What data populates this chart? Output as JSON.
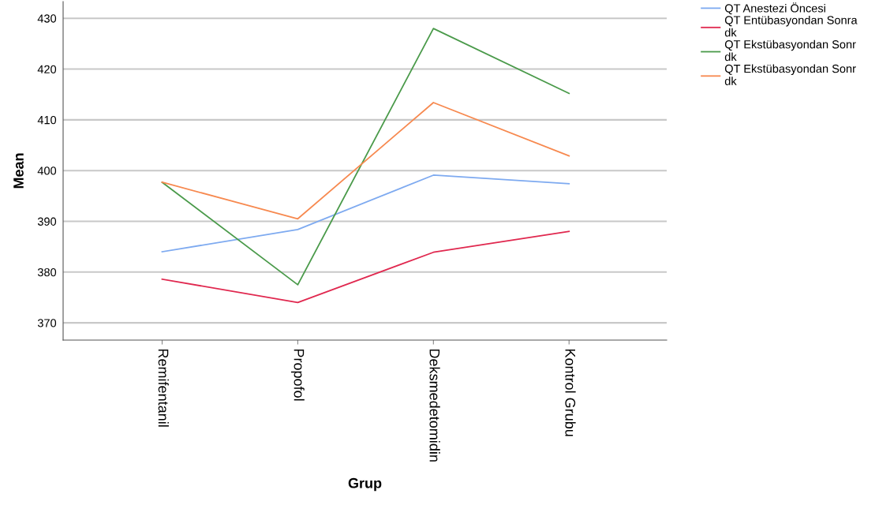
{
  "chart_data": {
    "type": "line",
    "xlabel": "Grup",
    "ylabel": "Mean",
    "categories": [
      "Remifentanil",
      "Propofol",
      "Deksmedetomidin",
      "Kontrol Grubu"
    ],
    "series": [
      {
        "name": "QT Anestezi Öncesi",
        "color": "#7eaaf0",
        "values": [
          384.0,
          388.4,
          399.1,
          397.4
        ]
      },
      {
        "name": "QT Entübasyondan Sonra\ndk",
        "color": "#e0284f",
        "values": [
          378.6,
          374.0,
          383.9,
          388.0
        ]
      },
      {
        "name": "QT Ekstübasyondan Sonr\ndk",
        "color": "#4a9a4a",
        "values": [
          397.7,
          377.5,
          428.0,
          415.2
        ]
      },
      {
        "name": "QT Ekstübasyondan Sonr\ndk",
        "color": "#f7894f",
        "values": [
          397.7,
          390.5,
          413.4,
          402.9
        ]
      }
    ],
    "ylim": [
      366.6,
      433.3
    ],
    "yticks": [
      370,
      380,
      390,
      400,
      410,
      420,
      430
    ],
    "grid": "y",
    "legend": "top right",
    "marker": "none",
    "line_style": "solid"
  }
}
